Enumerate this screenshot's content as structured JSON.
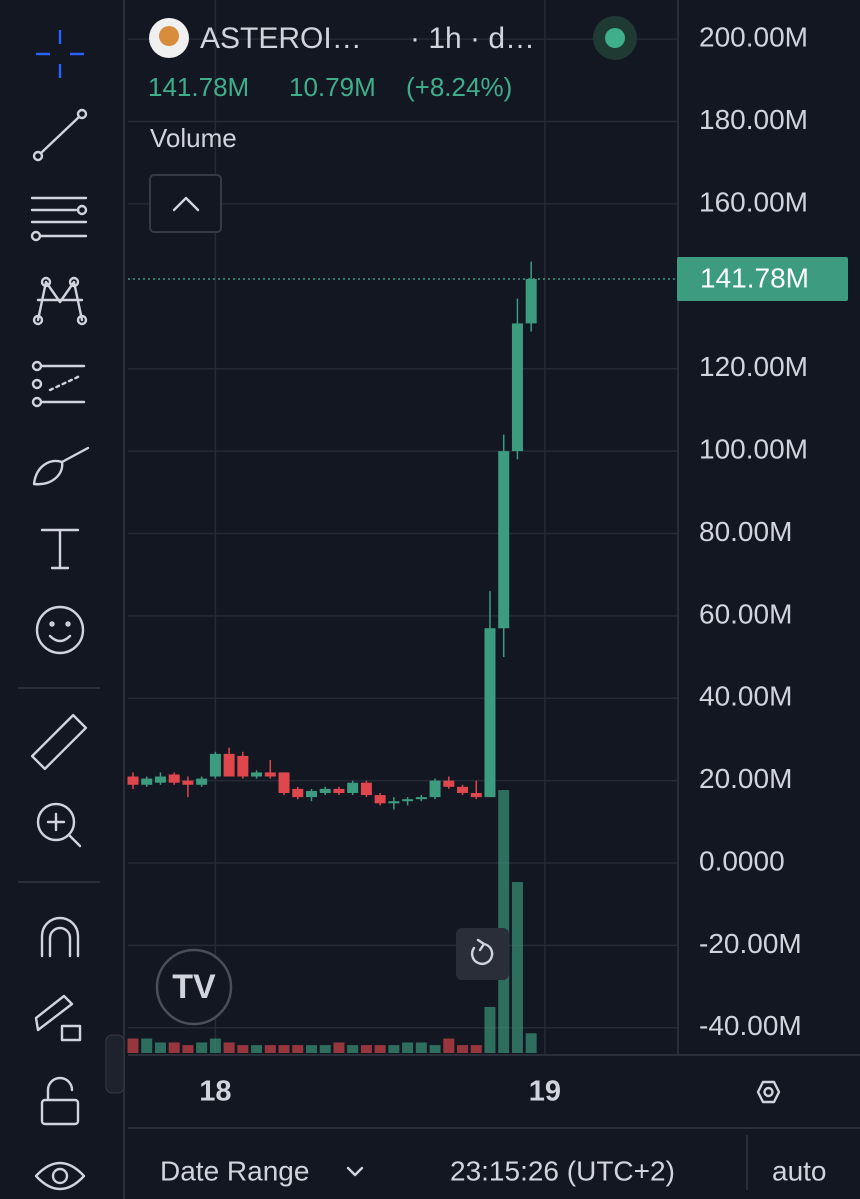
{
  "ui": {
    "symbol": "ASTEROI…",
    "interval": "· 1h · d…",
    "pane_title": "Volume",
    "date_range": "Date Range",
    "clock": "23:15:26 (UTC+2)",
    "scale_mode": "auto"
  },
  "chart_data": {
    "type": "candlestick",
    "header_values": [
      "141.78M",
      "10.79M",
      "(+8.24%)"
    ],
    "categories": [
      null,
      null,
      null,
      null,
      null,
      null,
      "18",
      null,
      null,
      null,
      null,
      null,
      null,
      null,
      null,
      null,
      null,
      null,
      null,
      null,
      null,
      null,
      null,
      null,
      null,
      null,
      null,
      null,
      null,
      null,
      "19"
    ],
    "open": [
      21,
      19,
      19.5,
      21.5,
      20,
      19,
      21,
      26.5,
      26,
      21,
      22,
      22,
      18,
      16,
      17,
      18,
      17,
      19.5,
      16.5,
      14.5,
      15,
      15.5,
      16,
      20,
      18.5,
      17,
      16,
      57,
      100,
      131,
      null
    ],
    "high": [
      22,
      21,
      22,
      22,
      21,
      21,
      27,
      28,
      27,
      22.5,
      25,
      22,
      18.5,
      18,
      18.5,
      18.5,
      20,
      20,
      17,
      16,
      16,
      16.5,
      20.5,
      21,
      19,
      20,
      66,
      104,
      137,
      146,
      null
    ],
    "low": [
      18,
      18.5,
      19,
      19,
      16,
      18.5,
      20.5,
      21,
      20.5,
      20.5,
      20.5,
      16.5,
      15.5,
      15,
      16.5,
      16.5,
      16.5,
      16,
      14,
      13,
      14,
      15,
      15.5,
      18,
      16.5,
      15.5,
      16,
      50,
      98,
      129,
      null
    ],
    "close": [
      19,
      20.5,
      21,
      19.5,
      19,
      20.5,
      26.5,
      21,
      21,
      22,
      21,
      17,
      16,
      17.5,
      18,
      17,
      19.5,
      16.5,
      14.5,
      15,
      15.5,
      16,
      20,
      18.5,
      17,
      16,
      57,
      100,
      131,
      141.78,
      null
    ],
    "volume": [
      1.1,
      1.1,
      0.8,
      0.8,
      0.6,
      0.8,
      1.1,
      0.8,
      0.6,
      0.6,
      0.6,
      0.6,
      0.6,
      0.6,
      0.6,
      0.8,
      0.6,
      0.6,
      0.6,
      0.6,
      0.8,
      0.8,
      0.6,
      1.1,
      0.6,
      0.6,
      3.5,
      20,
      13,
      1.5,
      null
    ],
    "volume_ylim": [
      0,
      20
    ],
    "up_color": "#3d9c80",
    "down_color": "#e0474d",
    "ylim": [
      -46.6,
      209.5
    ],
    "yticks": [
      {
        "value": 200,
        "label": "200.00M"
      },
      {
        "value": 180,
        "label": "180.00M"
      },
      {
        "value": 160,
        "label": "160.00M"
      },
      {
        "value": 120,
        "label": "120.00M"
      },
      {
        "value": 100,
        "label": "100.00M"
      },
      {
        "value": 80,
        "label": "80.00M"
      },
      {
        "value": 60,
        "label": "60.00M"
      },
      {
        "value": 40,
        "label": "40.00M"
      },
      {
        "value": 20,
        "label": "20.00M"
      },
      {
        "value": 0,
        "label": "0.0000"
      },
      {
        "value": -20,
        "label": "-20.00M"
      },
      {
        "value": -40,
        "label": "-40.00M"
      }
    ],
    "last_price": {
      "value": 141.78,
      "label": "141.78M"
    },
    "grid": true
  }
}
